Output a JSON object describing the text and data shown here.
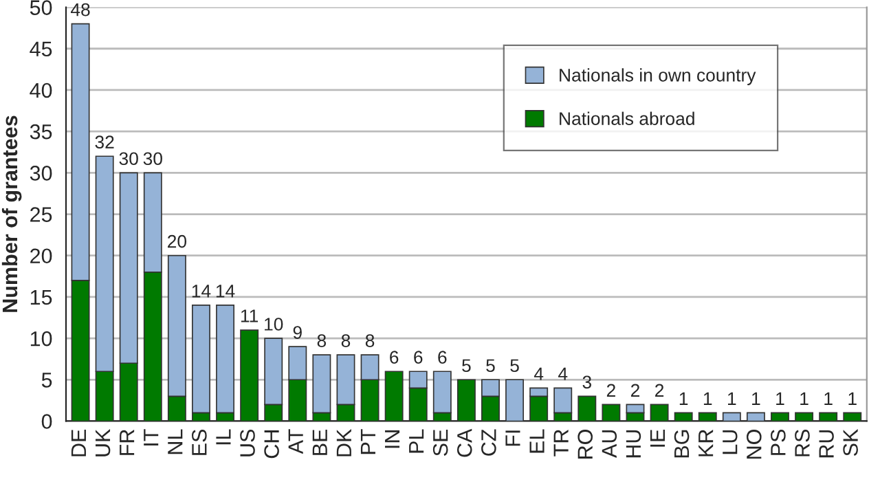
{
  "chart_data": {
    "type": "bar",
    "stacked": true,
    "ylabel": "Number of grantees",
    "categories": [
      "DE",
      "UK",
      "FR",
      "IT",
      "NL",
      "ES",
      "IL",
      "US",
      "CH",
      "AT",
      "BE",
      "DK",
      "PT",
      "IN",
      "PL",
      "SE",
      "CA",
      "CZ",
      "FI",
      "EL",
      "TR",
      "RO",
      "AU",
      "HU",
      "IE",
      "BG",
      "KR",
      "LU",
      "NO",
      "PS",
      "RS",
      "RU",
      "SK"
    ],
    "series": [
      {
        "name": "Nationals abroad",
        "color": "#007a00",
        "values": [
          17,
          6,
          7,
          18,
          3,
          1,
          1,
          11,
          2,
          5,
          1,
          2,
          5,
          6,
          4,
          1,
          5,
          3,
          0,
          3,
          1,
          3,
          2,
          1,
          2,
          1,
          1,
          0,
          0,
          1,
          1,
          1,
          1
        ]
      },
      {
        "name": "Nationals in own country",
        "color": "#95b3d7",
        "values": [
          31,
          26,
          23,
          12,
          17,
          13,
          13,
          0,
          8,
          4,
          7,
          6,
          3,
          0,
          2,
          5,
          0,
          2,
          5,
          1,
          3,
          0,
          0,
          1,
          0,
          0,
          0,
          1,
          1,
          0,
          0,
          0,
          0
        ]
      }
    ],
    "totals": [
      "48",
      "32",
      "30",
      "30",
      "20",
      "14",
      "14",
      "11",
      "10",
      "9",
      "8",
      "8",
      "8",
      "6",
      "6",
      "6",
      "5",
      "5",
      "5",
      "4",
      "4",
      "3",
      "2",
      "2",
      "2",
      "1",
      "1",
      "1",
      "1",
      "1",
      "1",
      "1",
      "1"
    ],
    "ylim": [
      0,
      50
    ],
    "yticks": [
      0,
      5,
      10,
      15,
      20,
      25,
      30,
      35,
      40,
      45,
      50
    ],
    "grid": "y",
    "legend": "top right"
  }
}
